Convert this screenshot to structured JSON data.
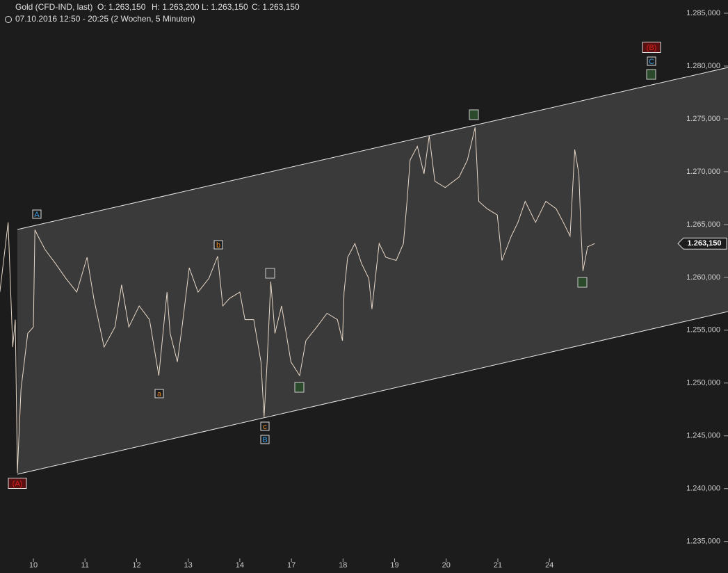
{
  "header": {
    "instrument": "Gold (CFD-IND, last)",
    "open": "O: 1.263,150",
    "high": "H: 1.263,200",
    "low": "L: 1.263,150",
    "close": "C: 1.263,150",
    "range": "07.10.2016 12:50 - 20:25 (2 Wochen, 5 Minuten)"
  },
  "chart_data": {
    "type": "line",
    "color": "#e8d8c8",
    "x": [
      -0.65,
      -0.49,
      -0.4,
      -0.35,
      -0.31,
      -0.24,
      -0.11,
      0,
      0.03,
      0.09,
      0.23,
      0.43,
      0.63,
      0.84,
      1.04,
      1.17,
      1.37,
      1.58,
      1.71,
      1.85,
      2.05,
      2.25,
      2.43,
      2.59,
      2.65,
      2.79,
      2.88,
      3.02,
      3.19,
      3.4,
      3.57,
      3.67,
      3.8,
      4.0,
      4.1,
      4.27,
      4.41,
      4.47,
      4.53,
      4.6,
      4.68,
      4.81,
      4.99,
      5.16,
      5.28,
      5.49,
      5.69,
      5.89,
      5.99,
      6.02,
      6.09,
      6.23,
      6.36,
      6.5,
      6.56,
      6.7,
      6.83,
      7.03,
      7.17,
      7.24,
      7.3,
      7.44,
      7.57,
      7.67,
      7.78,
      7.98,
      8.25,
      8.41,
      8.56,
      8.63,
      8.79,
      8.99,
      9.08,
      9.26,
      9.39,
      9.53,
      9.73,
      9.93,
      10.13,
      10.27,
      10.4,
      10.49,
      10.57,
      10.61,
      10.65,
      10.74,
      10.88
    ],
    "values": [
      1258.6,
      1265.2,
      1253.4,
      1256.0,
      1241.5,
      1249.4,
      1254.7,
      1255.3,
      1264.5,
      1263.9,
      1262.6,
      1261.3,
      1259.9,
      1258.6,
      1261.9,
      1258.0,
      1253.4,
      1255.3,
      1259.3,
      1255.3,
      1257.3,
      1256.0,
      1250.7,
      1258.6,
      1254.7,
      1252.0,
      1255.3,
      1260.9,
      1258.6,
      1259.9,
      1262.0,
      1257.3,
      1258.0,
      1258.6,
      1256.0,
      1256.0,
      1252.0,
      1246.8,
      1252.0,
      1259.6,
      1254.7,
      1257.3,
      1252.0,
      1250.7,
      1254.0,
      1255.3,
      1256.6,
      1256.0,
      1254.0,
      1258.6,
      1261.9,
      1263.2,
      1261.3,
      1259.9,
      1257.0,
      1263.2,
      1261.9,
      1261.6,
      1263.2,
      1267.2,
      1271.1,
      1272.4,
      1269.8,
      1273.4,
      1269.1,
      1268.5,
      1269.5,
      1271.1,
      1274.2,
      1267.2,
      1266.5,
      1265.9,
      1261.6,
      1263.9,
      1265.2,
      1267.2,
      1265.2,
      1267.2,
      1266.5,
      1265.2,
      1263.9,
      1272.1,
      1269.8,
      1264.5,
      1260.6,
      1262.9,
      1263.2
    ],
    "last_label": "1.263,150",
    "xlim": [
      -0.647,
      12.49
    ],
    "ylim": [
      1233.6,
      1286.25
    ],
    "xticks": [
      {
        "value": 0,
        "label": "10"
      },
      {
        "value": 1,
        "label": "11"
      },
      {
        "value": 2,
        "label": "12"
      },
      {
        "value": 3,
        "label": "13"
      },
      {
        "value": 4,
        "label": "14"
      },
      {
        "value": 5,
        "label": "17"
      },
      {
        "value": 6,
        "label": "18"
      },
      {
        "value": 7,
        "label": "19"
      },
      {
        "value": 8,
        "label": "20"
      },
      {
        "value": 9,
        "label": "21"
      },
      {
        "value": 10,
        "label": "24"
      }
    ],
    "yticks": [
      {
        "value": 1235,
        "label": "1.235,000"
      },
      {
        "value": 1240,
        "label": "1.240,000"
      },
      {
        "value": 1245,
        "label": "1.245,000"
      },
      {
        "value": 1250,
        "label": "1.250,000"
      },
      {
        "value": 1255,
        "label": "1.255,000"
      },
      {
        "value": 1260,
        "label": "1.260,000"
      },
      {
        "value": 1265,
        "label": "1.265,000"
      },
      {
        "value": 1270,
        "label": "1.270,000"
      },
      {
        "value": 1275,
        "label": "1.275,000"
      },
      {
        "value": 1280,
        "label": "1.280,000"
      },
      {
        "value": 1285,
        "label": "1.285,000"
      }
    ],
    "annotations": [
      {
        "label": "(A)",
        "kind": "major"
      },
      {
        "label": "A",
        "kind": "blue"
      },
      {
        "label": "a",
        "kind": "orange"
      },
      {
        "label": "b",
        "kind": "orange"
      },
      {
        "label": "c",
        "kind": "orange"
      },
      {
        "label": "B",
        "kind": "blue"
      },
      {
        "label": "(B)",
        "kind": "major"
      },
      {
        "label": "C",
        "kind": "blue"
      }
    ]
  }
}
